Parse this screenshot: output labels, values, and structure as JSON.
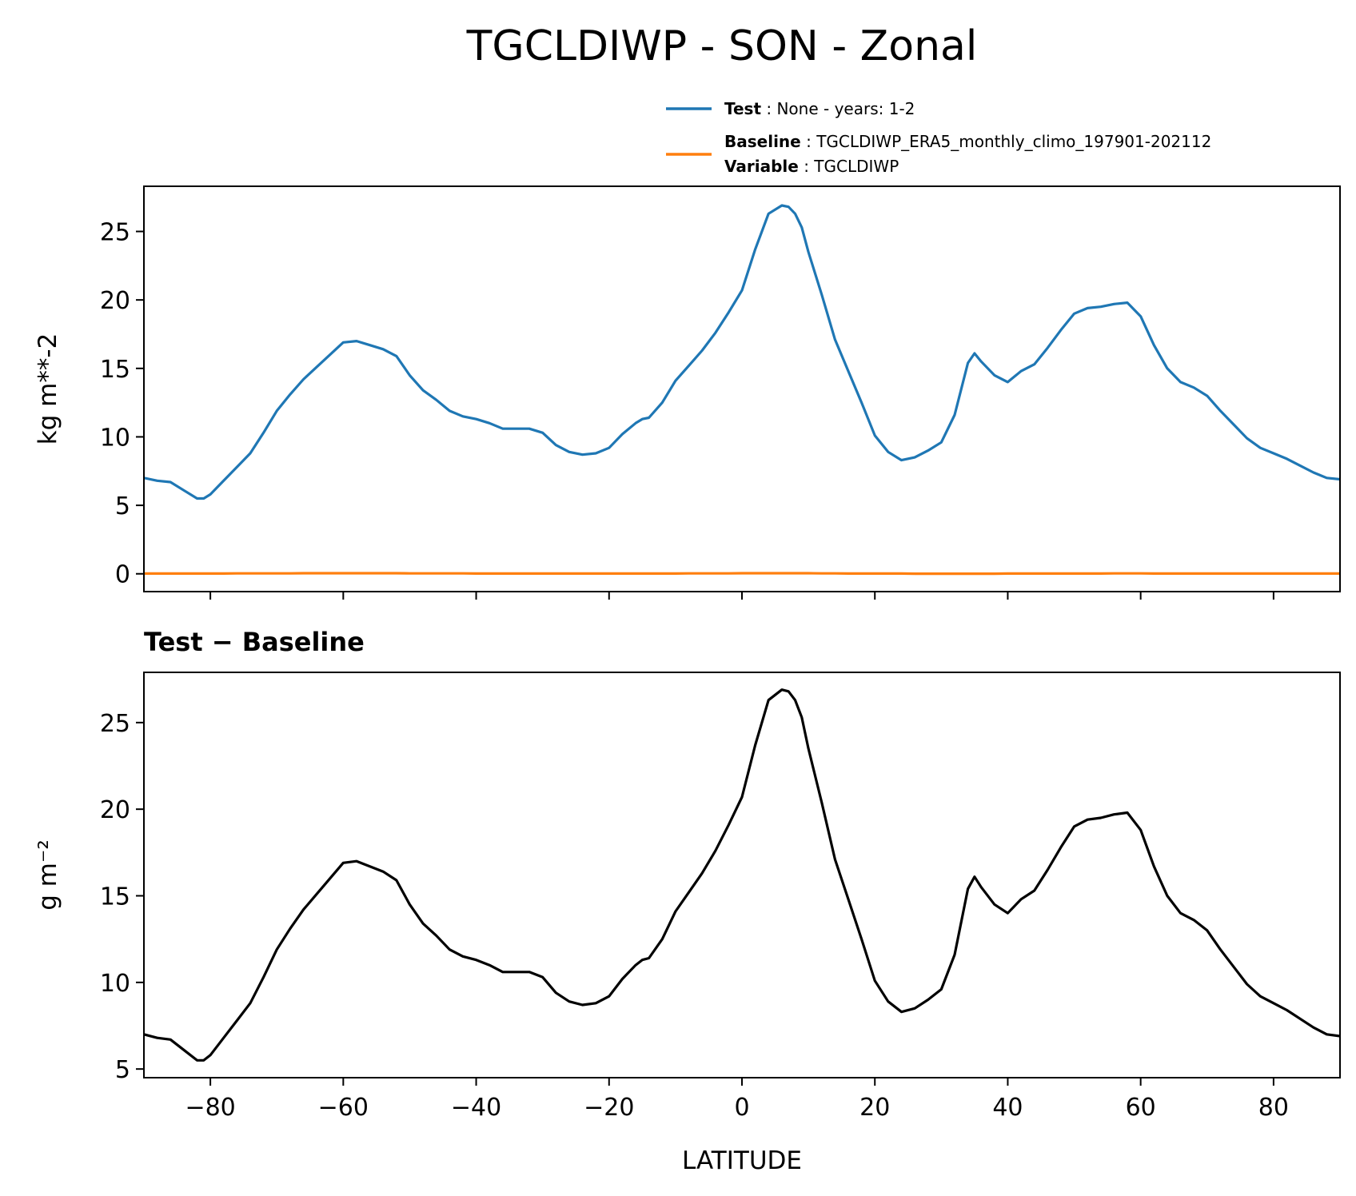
{
  "chart_data": {
    "title": "TGCLDIWP - SON - Zonal",
    "xlabel": "LATITUDE",
    "xlim": [
      -90,
      90
    ],
    "xticks": [
      -80,
      -60,
      -40,
      -20,
      0,
      20,
      40,
      60,
      80
    ],
    "xtick_labels": [
      "−80",
      "−60",
      "−40",
      "−20",
      "0",
      "20",
      "40",
      "60",
      "80"
    ],
    "legend": {
      "placement": "above top panel, right",
      "entries": [
        {
          "line_color": "#1f77b4",
          "parts": [
            {
              "key": "Test",
              "value": "None - years: 1-2"
            }
          ]
        },
        {
          "line_color": "#ff7f0e",
          "parts": [
            {
              "key": "Baseline",
              "value": "TGCLDIWP_ERA5_monthly_climo_197901-202112"
            },
            {
              "key": "Variable",
              "value": "TGCLDIWP"
            }
          ]
        }
      ]
    },
    "panels": [
      {
        "type": "line",
        "ylabel": "kg m**-2",
        "ylim": [
          -1.3,
          28.3
        ],
        "yticks": [
          0,
          5,
          10,
          15,
          20,
          25
        ],
        "ytick_labels": [
          "0",
          "5",
          "10",
          "15",
          "20",
          "25"
        ],
        "series": [
          {
            "name": "Test",
            "color": "#1f77b4",
            "x": "latitude",
            "y_ref": "test"
          },
          {
            "name": "Baseline",
            "color": "#ff7f0e",
            "x": "latitude",
            "y_ref": "baseline"
          }
        ]
      },
      {
        "type": "line",
        "title": "Test − Baseline",
        "ylabel": "g m⁻²",
        "ylim": [
          4.5,
          27.9
        ],
        "yticks": [
          5,
          10,
          15,
          20,
          25
        ],
        "ytick_labels": [
          "5",
          "10",
          "15",
          "20",
          "25"
        ],
        "series": [
          {
            "color": "#000000",
            "x": "latitude",
            "y_ref": "difference"
          }
        ]
      }
    ],
    "latitude": [
      -90,
      -88,
      -86,
      -84,
      -82,
      -81,
      -80,
      -78,
      -76,
      -74,
      -72,
      -70,
      -68,
      -66,
      -64,
      -62,
      -60,
      -58,
      -56,
      -54,
      -52,
      -50,
      -48,
      -46,
      -44,
      -42,
      -40,
      -38,
      -36,
      -34,
      -32,
      -30,
      -28,
      -26,
      -24,
      -22,
      -20,
      -18,
      -16,
      -15,
      -14,
      -12,
      -10,
      -8,
      -6,
      -4,
      -2,
      0,
      2,
      4,
      6,
      7,
      8,
      9,
      10,
      12,
      14,
      16,
      18,
      20,
      22,
      24,
      26,
      28,
      30,
      32,
      34,
      35,
      36,
      38,
      40,
      42,
      44,
      46,
      48,
      50,
      52,
      54,
      56,
      58,
      60,
      62,
      64,
      66,
      68,
      70,
      72,
      74,
      76,
      78,
      80,
      82,
      84,
      86,
      88,
      90
    ],
    "test": [
      7.0,
      6.8,
      6.7,
      6.1,
      5.5,
      5.5,
      5.8,
      6.8,
      7.8,
      8.8,
      10.3,
      11.9,
      13.1,
      14.2,
      15.1,
      16.0,
      16.9,
      17.0,
      16.7,
      16.4,
      15.9,
      14.5,
      13.4,
      12.7,
      11.9,
      11.5,
      11.3,
      11.0,
      10.6,
      10.6,
      10.6,
      10.3,
      9.4,
      8.9,
      8.7,
      8.8,
      9.2,
      10.2,
      11.0,
      11.3,
      11.4,
      12.5,
      14.1,
      15.2,
      16.3,
      17.6,
      19.1,
      20.7,
      23.7,
      26.3,
      26.9,
      26.8,
      26.3,
      25.3,
      23.5,
      20.4,
      17.1,
      14.8,
      12.5,
      10.1,
      8.9,
      8.3,
      8.5,
      9.0,
      9.6,
      11.6,
      15.4,
      16.1,
      15.5,
      14.5,
      14.0,
      14.8,
      15.3,
      16.5,
      17.8,
      19.0,
      19.4,
      19.5,
      19.7,
      19.8,
      18.8,
      16.7,
      15.0,
      14.0,
      13.6,
      13.0,
      11.9,
      10.9,
      9.9,
      9.2,
      8.8,
      8.4,
      7.9,
      7.4,
      7.0,
      6.9
    ],
    "baseline": [
      0.02,
      0.02,
      0.02,
      0.02,
      0.02,
      0.02,
      0.02,
      0.02,
      0.03,
      0.03,
      0.03,
      0.03,
      0.03,
      0.04,
      0.04,
      0.04,
      0.04,
      0.04,
      0.04,
      0.04,
      0.04,
      0.03,
      0.03,
      0.03,
      0.03,
      0.03,
      0.02,
      0.02,
      0.02,
      0.02,
      0.02,
      0.02,
      0.02,
      0.02,
      0.02,
      0.02,
      0.02,
      0.02,
      0.02,
      0.02,
      0.02,
      0.02,
      0.02,
      0.03,
      0.03,
      0.03,
      0.03,
      0.04,
      0.04,
      0.04,
      0.04,
      0.04,
      0.04,
      0.04,
      0.04,
      0.03,
      0.03,
      0.02,
      0.02,
      0.02,
      0.02,
      0.02,
      0.01,
      0.01,
      0.01,
      0.01,
      0.01,
      0.01,
      0.01,
      0.01,
      0.02,
      0.02,
      0.02,
      0.02,
      0.02,
      0.02,
      0.02,
      0.02,
      0.03,
      0.03,
      0.03,
      0.02,
      0.02,
      0.02,
      0.02,
      0.02,
      0.02,
      0.02,
      0.02,
      0.02,
      0.02,
      0.02,
      0.02,
      0.02,
      0.02,
      0.02
    ],
    "difference": [
      7.0,
      6.8,
      6.7,
      6.1,
      5.5,
      5.5,
      5.8,
      6.8,
      7.8,
      8.8,
      10.3,
      11.9,
      13.1,
      14.2,
      15.1,
      16.0,
      16.9,
      17.0,
      16.7,
      16.4,
      15.9,
      14.5,
      13.4,
      12.7,
      11.9,
      11.5,
      11.3,
      11.0,
      10.6,
      10.6,
      10.6,
      10.3,
      9.4,
      8.9,
      8.7,
      8.8,
      9.2,
      10.2,
      11.0,
      11.3,
      11.4,
      12.5,
      14.1,
      15.2,
      16.3,
      17.6,
      19.1,
      20.7,
      23.7,
      26.3,
      26.9,
      26.8,
      26.3,
      25.3,
      23.5,
      20.4,
      17.1,
      14.8,
      12.5,
      10.1,
      8.9,
      8.3,
      8.5,
      9.0,
      9.6,
      11.6,
      15.4,
      16.1,
      15.5,
      14.5,
      14.0,
      14.8,
      15.3,
      16.5,
      17.8,
      19.0,
      19.4,
      19.5,
      19.7,
      19.8,
      18.8,
      16.7,
      15.0,
      14.0,
      13.6,
      13.0,
      11.9,
      10.9,
      9.9,
      9.2,
      8.8,
      8.4,
      7.9,
      7.4,
      7.0,
      6.9
    ]
  }
}
